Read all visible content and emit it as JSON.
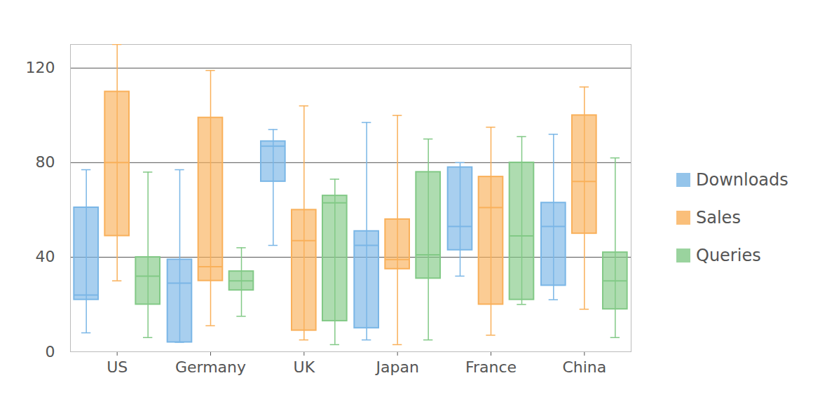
{
  "chart_data": {
    "type": "box",
    "categories": [
      "US",
      "Germany",
      "UK",
      "Japan",
      "France",
      "China"
    ],
    "series": [
      {
        "name": "Downloads",
        "color": "#7ab6e6",
        "values": [
          {
            "min": 8,
            "q1": 22,
            "median": 24,
            "q3": 61,
            "max": 77
          },
          {
            "min": 4,
            "q1": 4,
            "median": 29,
            "q3": 39,
            "max": 77
          },
          {
            "min": 45,
            "q1": 72,
            "median": 87,
            "q3": 89,
            "max": 94
          },
          {
            "min": 5,
            "q1": 10,
            "median": 45,
            "q3": 51,
            "max": 97
          },
          {
            "min": 32,
            "q1": 43,
            "median": 53,
            "q3": 78,
            "max": 80
          },
          {
            "min": 22,
            "q1": 28,
            "median": 53,
            "q3": 63,
            "max": 92
          }
        ]
      },
      {
        "name": "Sales",
        "color": "#f9b05a",
        "values": [
          {
            "min": 30,
            "q1": 49,
            "median": 80,
            "q3": 110,
            "max": 130
          },
          {
            "min": 11,
            "q1": 30,
            "median": 36,
            "q3": 99,
            "max": 119
          },
          {
            "min": 5,
            "q1": 9,
            "median": 47,
            "q3": 60,
            "max": 104
          },
          {
            "min": 3,
            "q1": 35,
            "median": 39,
            "q3": 56,
            "max": 100
          },
          {
            "min": 7,
            "q1": 20,
            "median": 61,
            "q3": 74,
            "max": 95
          },
          {
            "min": 18,
            "q1": 50,
            "median": 72,
            "q3": 100,
            "max": 112
          }
        ]
      },
      {
        "name": "Queries",
        "color": "#82c986",
        "values": [
          {
            "min": 6,
            "q1": 20,
            "median": 32,
            "q3": 40,
            "max": 76
          },
          {
            "min": 15,
            "q1": 26,
            "median": 30,
            "q3": 34,
            "max": 44
          },
          {
            "min": 3,
            "q1": 13,
            "median": 63,
            "q3": 66,
            "max": 73
          },
          {
            "min": 5,
            "q1": 31,
            "median": 41,
            "q3": 76,
            "max": 90
          },
          {
            "min": 20,
            "q1": 22,
            "median": 49,
            "q3": 80,
            "max": 91
          },
          {
            "min": 6,
            "q1": 18,
            "median": 30,
            "q3": 42,
            "max": 82
          }
        ]
      }
    ],
    "ylim": [
      0,
      130
    ],
    "yticks": [
      0,
      40,
      80,
      120
    ],
    "grid": true,
    "legend": "right"
  }
}
